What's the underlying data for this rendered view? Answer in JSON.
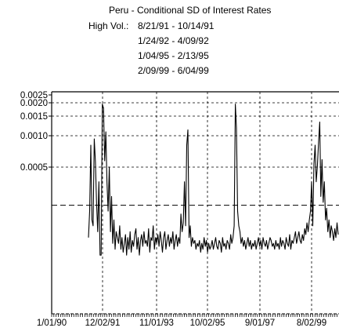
{
  "chart_data": {
    "type": "line",
    "title": "Peru - Conditional SD of Interest Rates",
    "annotation": {
      "label": "High Vol.:",
      "periods": [
        "8/21/91 - 10/14/91",
        "1/24/92 - 4/09/92",
        "1/04/95 - 2/13/95",
        "2/09/99 - 6/04/99"
      ]
    },
    "xlabel": "",
    "ylabel": "",
    "x_tick_labels": [
      "1/01/90",
      "12/02/91",
      "11/01/93",
      "10/02/95",
      "9/01/97",
      "8/02/99"
    ],
    "y_tick_labels": [
      "0.0025",
      "0.0020",
      "0.0015",
      "0.0010",
      "0.0005"
    ],
    "y_ticks": [
      0.0025,
      0.002,
      0.0015,
      0.001,
      0.0005
    ],
    "threshold": 0.00037,
    "grid": true,
    "series": [
      {
        "color": "#000000",
        "values": [
          0.00026,
          0.00035,
          0.00085,
          0.00032,
          0.0003,
          0.00095,
          0.00058,
          0.00038,
          0.00028,
          0.00045,
          0.0002,
          0.0002,
          0.00195,
          0.0018,
          0.0006,
          0.0011,
          0.00045,
          0.00035,
          0.0005,
          0.00028,
          0.0004,
          0.00024,
          0.00032,
          0.00022,
          0.00028,
          0.00026,
          0.00024,
          0.0003,
          0.00022,
          0.00026,
          0.00021,
          0.00024,
          0.00027,
          0.0002,
          0.00026,
          0.00022,
          0.00028,
          0.00021,
          0.00025,
          0.00023,
          0.00027,
          0.00029,
          0.00022,
          0.00026,
          0.0002,
          0.00025,
          0.00027,
          0.00023,
          0.00028,
          0.00024,
          0.00025,
          0.00023,
          0.00029,
          0.00021,
          0.00026,
          0.00025,
          0.0003,
          0.00022,
          0.00026,
          0.00024,
          0.00027,
          0.00023,
          0.00028,
          0.00025,
          0.00021,
          0.00026,
          0.00028,
          0.00022,
          0.00025,
          0.00027,
          0.00023,
          0.00026,
          0.00024,
          0.00028,
          0.00022,
          0.00025,
          0.00027,
          0.00023,
          0.00026,
          0.00024,
          0.00034,
          0.00028,
          0.00031,
          0.00045,
          0.0003,
          0.00085,
          0.00115,
          0.00026,
          0.0003,
          0.00023,
          0.00026,
          0.00024,
          0.00025,
          0.00022,
          0.00024,
          0.00023,
          0.00025,
          0.00021,
          0.00024,
          0.00022,
          0.00026,
          0.00023,
          0.00025,
          0.00021,
          0.00024,
          0.00022,
          0.00023,
          0.00025,
          0.00022,
          0.00024,
          0.00026,
          0.00023,
          0.00022,
          0.00025,
          0.00024,
          0.00021,
          0.00026,
          0.00023,
          0.00024,
          0.00022,
          0.00025,
          0.00024,
          0.00022,
          0.00027,
          0.00024,
          0.00026,
          0.0003,
          0.00195,
          0.0012,
          0.00035,
          0.0003,
          0.00028,
          0.00024,
          0.00026,
          0.00023,
          0.00025,
          0.00022,
          0.00024,
          0.00026,
          0.00023,
          0.00025,
          0.00022,
          0.00024,
          0.00023,
          0.00025,
          0.00022,
          0.00024,
          0.00026,
          0.00023,
          0.00025,
          0.00022,
          0.00026,
          0.00024,
          0.00023,
          0.00025,
          0.00022,
          0.00024,
          0.00026,
          0.00025,
          0.00023,
          0.00024,
          0.00022,
          0.00025,
          0.00023,
          0.00024,
          0.00022,
          0.00026,
          0.00023,
          0.00025,
          0.00024,
          0.00022,
          0.00026,
          0.00024,
          0.00023,
          0.00027,
          0.00022,
          0.00025,
          0.00024,
          0.00026,
          0.00028,
          0.00024,
          0.00026,
          0.00028,
          0.00025,
          0.00024,
          0.00027,
          0.00025,
          0.00029,
          0.00027,
          0.00031,
          0.00028,
          0.00032,
          0.00035,
          0.00045,
          0.0003,
          0.00055,
          0.00085,
          0.00045,
          0.00052,
          0.0009,
          0.00135,
          0.0004,
          0.00062,
          0.00038,
          0.00045,
          0.00032,
          0.00036,
          0.00028,
          0.00032,
          0.00026,
          0.0003,
          0.00028,
          0.00025,
          0.00029,
          0.00026,
          0.00031,
          0.00027
        ]
      }
    ]
  }
}
